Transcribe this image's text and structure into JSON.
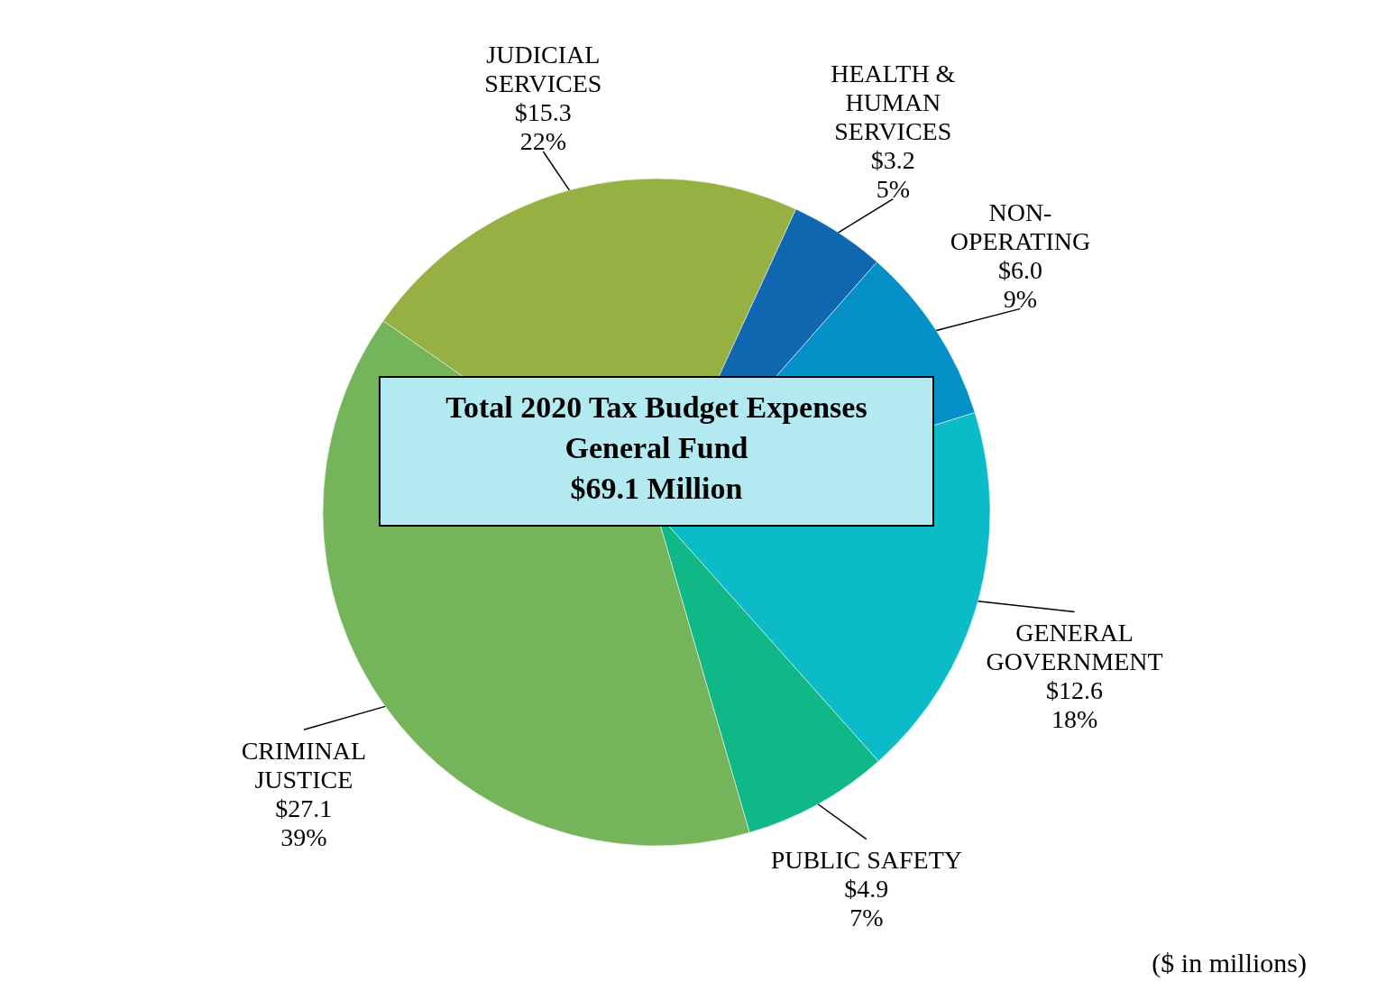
{
  "chart_data": {
    "type": "pie",
    "title": "Total 2020 Tax Budget Expenses",
    "subtitle": "General Fund\n$69.1 Million",
    "categories": [
      "JUDICIAL\nSERVICES",
      "HEALTH &\nHUMAN\nSERVICES",
      "NON-\nOPERATING",
      "GENERAL\nGOVERNMENT",
      "PUBLIC SAFETY",
      "CRIMINAL\nJUSTICE"
    ],
    "values": [
      15.3,
      3.2,
      6.0,
      12.6,
      4.9,
      27.1
    ],
    "value_labels": [
      "$15.3\n22%",
      "$3.2\n5%",
      "$6.0\n9%",
      "$12.6\n18%",
      "$4.9\n7%",
      "$27.1\n39%"
    ],
    "colors": [
      "#97b043",
      "#1166b0",
      "#0590c8",
      "#0bbcc8",
      "#10b888",
      "#74b45a"
    ],
    "annotations": [
      "($ in millions)"
    ]
  }
}
